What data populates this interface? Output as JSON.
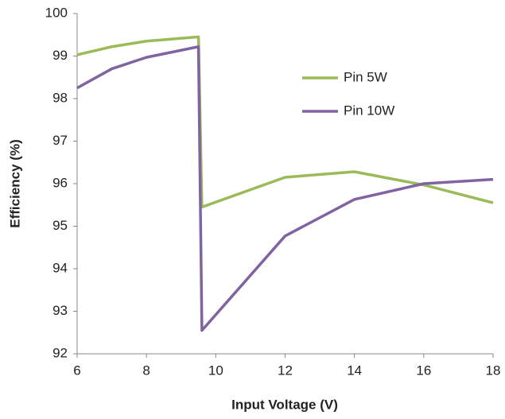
{
  "chart_data": {
    "type": "line",
    "x_label": "Input Voltage (V)",
    "y_label": "Efficiency (%)",
    "x": [
      6,
      7,
      8,
      9.5,
      9.6,
      12,
      14,
      16,
      18
    ],
    "series": [
      {
        "name": "Pin 5W",
        "color": "#9bbb59",
        "values": [
          99.03,
          99.22,
          99.35,
          99.45,
          95.45,
          96.15,
          96.28,
          95.97,
          95.55
        ]
      },
      {
        "name": "Pin 10W",
        "color": "#8064a2",
        "values": [
          98.25,
          98.7,
          98.97,
          99.22,
          92.55,
          94.77,
          95.63,
          96.0,
          96.1
        ]
      }
    ],
    "xlim": [
      6,
      18
    ],
    "xticks": [
      6,
      8,
      10,
      12,
      14,
      16,
      18
    ],
    "ylim": [
      92,
      100
    ],
    "yticks": [
      92,
      93,
      94,
      95,
      96,
      97,
      98,
      99,
      100
    ],
    "grid": false
  }
}
